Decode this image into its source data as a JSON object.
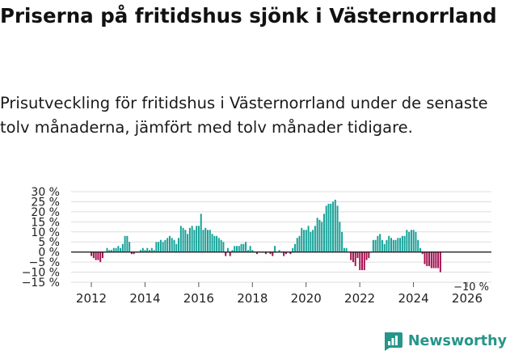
{
  "header": {
    "title": "Priserna på fritidshus sjönk i Västernorrland",
    "subtitle": "Prisutveckling för fritidshus i Västernorrland under de senaste tolv månaderna, jämfört med tolv månader tidigare."
  },
  "brand": {
    "name": "Newsworthy"
  },
  "colors": {
    "positive": "#14a198",
    "negative": "#a50e50",
    "grid": "#dddddd",
    "zero": "#222222",
    "brand": "#26958a"
  },
  "chart_data": {
    "type": "bar",
    "title": "Prisutveckling för fritidshus i Västernorrland",
    "xlabel": "",
    "ylabel": "",
    "ylim": [
      -15,
      30
    ],
    "y_ticks": [
      -15,
      -10,
      -5,
      0,
      5,
      10,
      15,
      20,
      25,
      30
    ],
    "y_tick_labels": [
      "−15 %",
      "−10 %",
      "−5 %",
      "0 %",
      "5 %",
      "10 %",
      "15 %",
      "20 %",
      "25 %",
      "30 %"
    ],
    "x_ticks": [
      2012,
      2014,
      2016,
      2018,
      2020,
      2022,
      2024,
      2026
    ],
    "x_tick_labels": [
      "2012",
      "2014",
      "2016",
      "2018",
      "2020",
      "2022",
      "2024",
      "2026"
    ],
    "start": {
      "year": 2012,
      "month": 1
    },
    "end_label": "−10 %",
    "grid": true,
    "values": [
      -2,
      -3,
      -4,
      -4,
      -5,
      -3,
      0,
      2,
      1,
      1,
      2,
      2,
      3,
      2,
      4,
      8,
      8,
      5,
      -1,
      -1,
      0,
      0,
      1,
      2,
      1,
      2,
      1,
      2,
      1,
      5,
      5,
      6,
      5,
      6,
      7,
      8,
      7,
      6,
      4,
      7,
      13,
      12,
      11,
      9,
      12,
      13,
      11,
      13,
      13,
      19,
      11,
      12,
      11,
      11,
      9,
      8,
      8,
      7,
      6,
      5,
      -2,
      2,
      -2,
      1,
      3,
      3,
      3,
      4,
      4,
      5,
      1,
      3,
      1,
      0,
      -1,
      0,
      0,
      0,
      -1,
      0,
      -1,
      -2,
      3,
      0,
      1,
      0,
      -2,
      -1,
      0,
      -1,
      2,
      4,
      7,
      8,
      12,
      11,
      11,
      13,
      10,
      11,
      13,
      17,
      16,
      15,
      19,
      23,
      24,
      24,
      25,
      26,
      23,
      15,
      10,
      2,
      2,
      0,
      -4,
      -5,
      -7,
      -3,
      -9,
      -9,
      -9,
      -4,
      -3,
      0,
      6,
      6,
      8,
      9,
      6,
      4,
      6,
      8,
      7,
      6,
      6,
      7,
      7,
      8,
      8,
      11,
      10,
      11,
      11,
      10,
      6,
      2,
      -1,
      -6,
      -7,
      -7,
      -8,
      -8,
      -8,
      -8,
      -10
    ]
  }
}
